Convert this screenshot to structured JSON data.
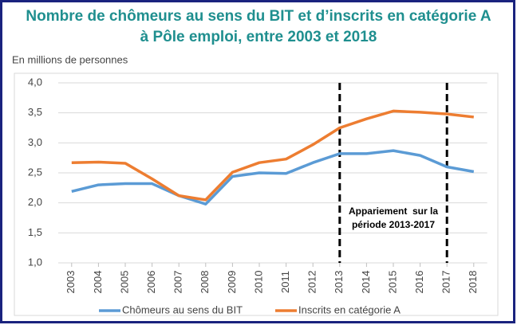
{
  "chart_data": {
    "type": "line",
    "title": [
      "Nombre de chômeurs au sens du BIT et d’inscrits en catégorie A",
      "à Pôle emploi, entre 2003 et 2018"
    ],
    "y_label": "En millions de personnes",
    "x": [
      2003,
      2004,
      2005,
      2006,
      2007,
      2008,
      2009,
      2010,
      2011,
      2012,
      2013,
      2014,
      2015,
      2016,
      2017,
      2018
    ],
    "xlim": [
      2002.5,
      2018.5
    ],
    "xticks": [
      2003,
      2004,
      2005,
      2006,
      2007,
      2008,
      2009,
      2010,
      2011,
      2012,
      2013,
      2014,
      2015,
      2016,
      2017,
      2018
    ],
    "ylim": [
      1.0,
      4.0
    ],
    "yticks": [
      {
        "value": 1.0,
        "label": "1,0"
      },
      {
        "value": 1.5,
        "label": "1,5"
      },
      {
        "value": 2.0,
        "label": "2,0"
      },
      {
        "value": 2.5,
        "label": "2,5"
      },
      {
        "value": 3.0,
        "label": "3,0"
      },
      {
        "value": 3.5,
        "label": "3,5"
      },
      {
        "value": 4.0,
        "label": "4,0"
      }
    ],
    "grid": true,
    "series": [
      {
        "name": "Chômeurs au sens du BIT",
        "color": "#5b9bd5",
        "values": [
          2.19,
          2.3,
          2.32,
          2.32,
          2.12,
          1.98,
          2.44,
          2.5,
          2.49,
          2.67,
          2.82,
          2.82,
          2.87,
          2.79,
          2.6,
          2.52
        ]
      },
      {
        "name": "Inscrits en catégorie A",
        "color": "#ed7d31",
        "values": [
          2.67,
          2.68,
          2.66,
          2.4,
          2.12,
          2.05,
          2.51,
          2.67,
          2.73,
          2.97,
          3.25,
          3.4,
          3.53,
          3.51,
          3.48,
          3.43
        ]
      }
    ],
    "vlines": [
      2013,
      2017
    ],
    "annotation": [
      "Appariement  sur la",
      "période 2013-2017"
    ]
  }
}
